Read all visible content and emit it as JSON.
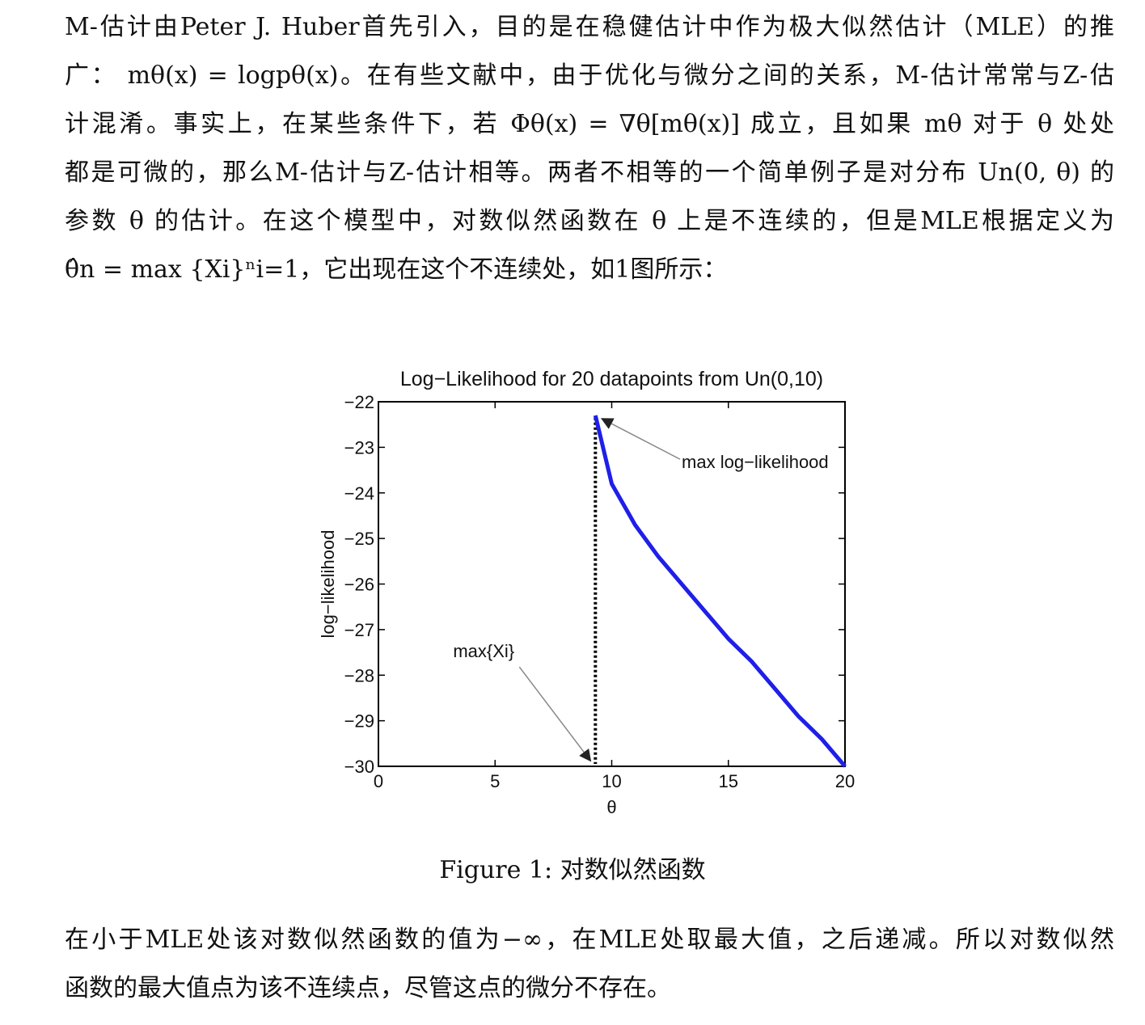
{
  "paragraph1": {
    "lines": [
      "M-估计由Peter J. Huber首先引入，目的是在稳健估计中作为极大似然估计（MLE）的推",
      "广： mθ(x) = logpθ(x)。在有些文献中，由于优化与微分之间的关系，M-估计常常与Z-估",
      "计混淆。事实上，在某些条件下，若 Φθ(x) = ∇θ[mθ(x)] 成立，且如果 mθ 对于 θ 处处",
      "都是可微的，那么M-估计与Z-估计相等。两者不相等的一个简单例子是对分布 Un(0, θ) 的",
      "参数 θ 的估计。在这个模型中，对数似然函数在 θ 上是不连续的，但是MLE根据定义为",
      "θ̂n = max {Xi}ⁿi=1，它出现在这个不连续处，如1图所示："
    ]
  },
  "figure": {
    "caption": "Figure 1: 对数似然函数"
  },
  "chart_data": {
    "type": "line",
    "title": "Log−Likelihood for 20 datapoints from Un(0,10)",
    "xlabel": "θ",
    "ylabel": "log−likelihood",
    "xlim": [
      0,
      20
    ],
    "ylim": [
      -30,
      -22
    ],
    "xticks": [
      "0",
      "5",
      "10",
      "15",
      "20"
    ],
    "yticks": [
      "−22",
      "−23",
      "−24",
      "−25",
      "−26",
      "−27",
      "−28",
      "−29",
      "−30"
    ],
    "series": [
      {
        "color": "#1f1fe8",
        "x": [
          9.3,
          10,
          11,
          12,
          13,
          14,
          15,
          16,
          17,
          18,
          19,
          20
        ],
        "y": [
          -22.3,
          -23.8,
          -24.7,
          -25.4,
          -26.0,
          -26.6,
          -27.2,
          -27.7,
          -28.3,
          -28.9,
          -29.4,
          -30.0
        ]
      }
    ],
    "vertical_line": {
      "x": 9.3,
      "style": "dotted",
      "color": "#000000"
    },
    "annotations": [
      {
        "text": "max log−likelihood",
        "x": 13.0,
        "y": -23.35,
        "arrow_to": [
          9.3,
          -22.3
        ]
      },
      {
        "text": "max{Xi}",
        "x": 3.2,
        "y": -27.5,
        "arrow_to": [
          9.3,
          -29.95
        ]
      }
    ],
    "grid": false
  },
  "paragraph2": {
    "lines": [
      "在小于MLE处该对数似然函数的值为−∞，在MLE处取最大值，之后递减。所以对数似然",
      "函数的最大值点为该不连续点，尽管这点的微分不存在。"
    ]
  }
}
